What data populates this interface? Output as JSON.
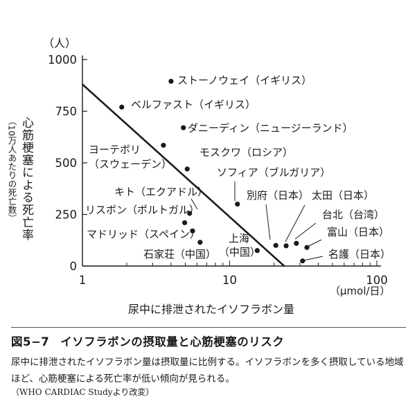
{
  "chart_data": {
    "type": "scatter",
    "xscale": "log",
    "xlim": [
      1,
      100
    ],
    "ylim": [
      0,
      1000
    ],
    "x_ticks": [
      {
        "value": 1,
        "label": "1"
      },
      {
        "value": 10,
        "label": "10"
      },
      {
        "value": 100,
        "label": "100"
      }
    ],
    "y_ticks": [
      {
        "value": 0,
        "label": "0"
      },
      {
        "value": 250,
        "label": "250"
      },
      {
        "value": 500,
        "label": "500"
      },
      {
        "value": 750,
        "label": "750"
      },
      {
        "value": 1000,
        "label": "1000"
      }
    ],
    "y_unit": "（人）",
    "x_unit": "（μmol/日）",
    "xlabel": "尿中に排泄されたイソフラボン量",
    "ylabel": "心筋梗塞による死亡率",
    "ylabel_sub": "（10万人あたりの死亡数）",
    "trend_line": {
      "x": [
        1,
        23.5
      ],
      "y": [
        880,
        0
      ]
    },
    "points": [
      {
        "name": "ストーノウェイ（イギリス）",
        "x": 4.0,
        "y": 895
      },
      {
        "name": "ベルファスト（イギリス）",
        "x": 1.85,
        "y": 770
      },
      {
        "name": "ダニーディン（ニュージーランド）",
        "x": 4.85,
        "y": 670
      },
      {
        "name": "ヨーテボリ（スウェーデン）",
        "x": 3.55,
        "y": 585
      },
      {
        "name": "モスクワ（ロシア）",
        "x": 5.15,
        "y": 470
      },
      {
        "name": "ソフィア（ブルガリア）",
        "x": 11.3,
        "y": 300
      },
      {
        "name": "キト（エクアドル）",
        "x": 5.35,
        "y": 255
      },
      {
        "name": "リスボン（ポルトガル）",
        "x": 4.95,
        "y": 210
      },
      {
        "name": "マドリッド（スペイン）",
        "x": 5.6,
        "y": 170
      },
      {
        "name": "石家荘（中国）",
        "x": 6.3,
        "y": 115
      },
      {
        "name": "上海（中国）",
        "x": 15.4,
        "y": 75
      },
      {
        "name": "別府（日本）",
        "x": 20.6,
        "y": 100
      },
      {
        "name": "太田（日本）",
        "x": 24.2,
        "y": 98
      },
      {
        "name": "台北（台湾）",
        "x": 28.4,
        "y": 110
      },
      {
        "name": "富山（日本）",
        "x": 33.5,
        "y": 90
      },
      {
        "name": "名護（日本）",
        "x": 31.3,
        "y": 25
      }
    ]
  },
  "figure": {
    "number": "図5−7",
    "title": "イソフラボンの摂取量と心筋梗塞のリスク",
    "caption": "尿中に排泄されたイソフラボン量は摂取量に比例する。イソフラボンを多く摂取している地域ほど、心筋梗塞による死亡率が低い傾向が見られる。",
    "source": "（WHO CARDIAC Studyより改変）"
  }
}
